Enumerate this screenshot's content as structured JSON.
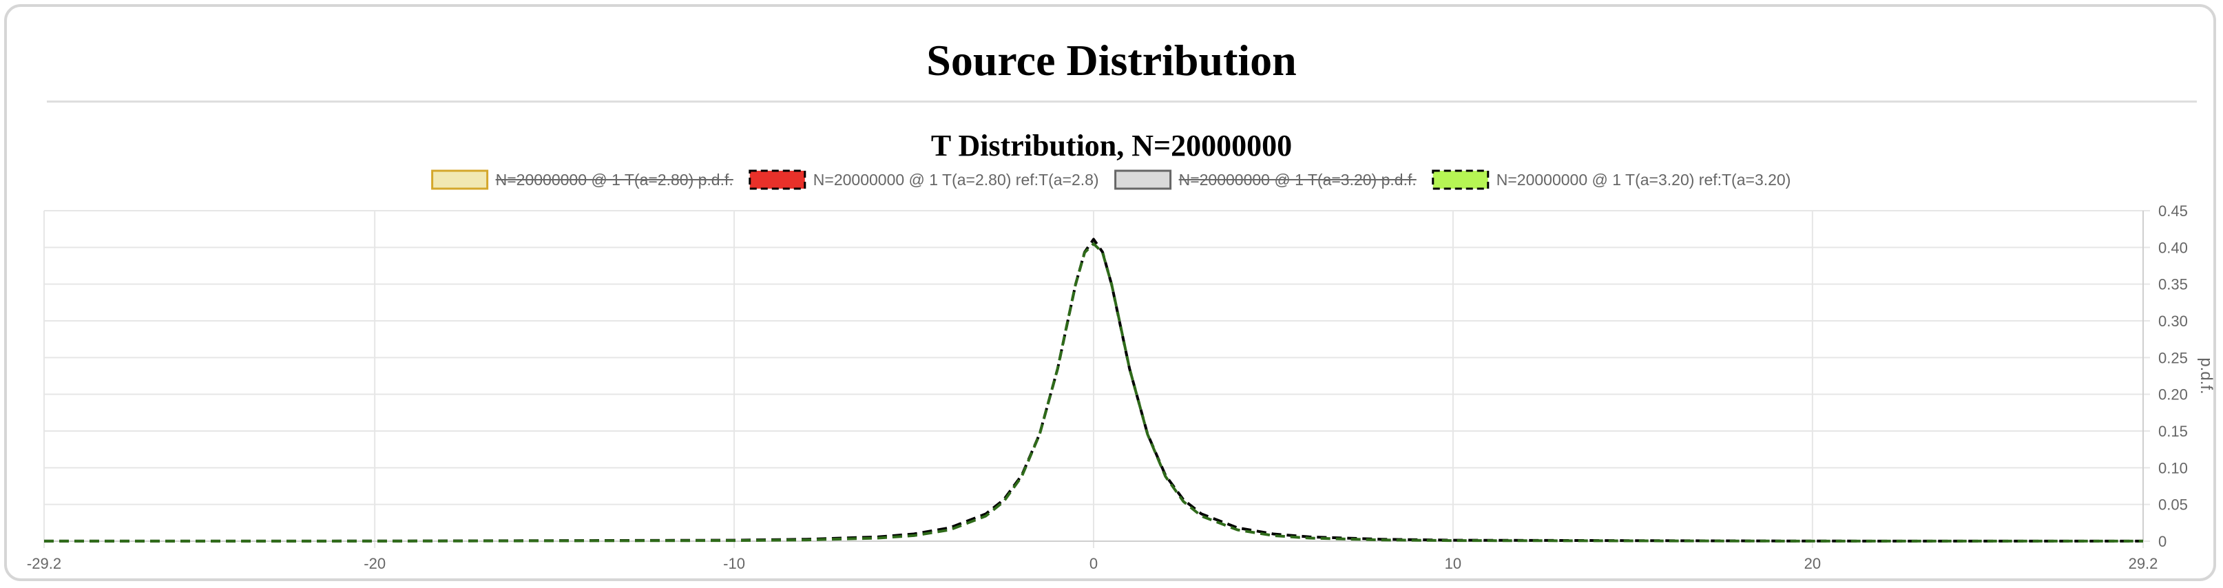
{
  "page": {
    "title": "Source Distribution"
  },
  "chart_data": {
    "type": "line",
    "title": "T Distribution, N=20000000",
    "xlabel": "",
    "ylabel": "p.d.f.",
    "xlim": [
      -29.2,
      29.2
    ],
    "ylim": [
      0,
      0.45
    ],
    "x_ticks": [
      "-29.2",
      "-20",
      "-10",
      "0",
      "10",
      "20",
      "29.2"
    ],
    "y_ticks": [
      "0",
      "0.05",
      "0.10",
      "0.15",
      "0.20",
      "0.25",
      "0.30",
      "0.35",
      "0.40",
      "0.45"
    ],
    "grid": true,
    "legend_position": "top",
    "y_axis_side": "right",
    "series": [
      {
        "name": "N=20000000 @ 1 T(a=2.80) p.d.f.",
        "hidden": true,
        "dashed": false,
        "color": "#d4a72c",
        "fill": "#f1e8b3",
        "x": [],
        "y": []
      },
      {
        "name": "N=20000000 @ 1 T(a=2.80) ref:T(a=2.8)",
        "hidden": false,
        "dashed": true,
        "color": "#000000",
        "fill": "#e8312a",
        "x": [
          -29.2,
          -20,
          -10,
          -8,
          -6,
          -5,
          -4,
          -3,
          -2.5,
          -2,
          -1.5,
          -1,
          -0.75,
          -0.5,
          -0.25,
          0,
          0.25,
          0.5,
          0.75,
          1,
          1.5,
          2,
          2.5,
          3,
          4,
          5,
          6,
          8,
          10,
          20,
          29.2
        ],
        "y": [
          0.0001,
          0.0002,
          0.0013,
          0.0026,
          0.0058,
          0.0098,
          0.0183,
          0.0371,
          0.0564,
          0.0896,
          0.1461,
          0.2348,
          0.2926,
          0.3498,
          0.3937,
          0.4111,
          0.3937,
          0.3498,
          0.2926,
          0.2348,
          0.1461,
          0.0896,
          0.0564,
          0.0371,
          0.0183,
          0.0098,
          0.0058,
          0.0026,
          0.0013,
          0.0002,
          0.0001
        ]
      },
      {
        "name": "N=20000000 @ 1 T(a=3.20) p.d.f.",
        "hidden": true,
        "dashed": false,
        "color": "#666666",
        "fill": "#dadada",
        "x": [],
        "y": []
      },
      {
        "name": "N=20000000 @ 1 T(a=3.20) ref:T(a=3.20)",
        "hidden": false,
        "dashed": true,
        "color": "#2f6b1a",
        "fill": "#b6f554",
        "x": [
          -29.2,
          -20,
          -10,
          -8,
          -6,
          -5,
          -4,
          -3,
          -2.5,
          -2,
          -1.5,
          -1,
          -0.75,
          -0.5,
          -0.25,
          0,
          0.25,
          0.5,
          0.75,
          1,
          1.5,
          2,
          2.5,
          3,
          4,
          5,
          6,
          8,
          10,
          20,
          29.2
        ],
        "y": [
          0.0001,
          0.0001,
          0.0008,
          0.0017,
          0.0042,
          0.0076,
          0.0155,
          0.0342,
          0.054,
          0.088,
          0.1457,
          0.235,
          0.2932,
          0.35,
          0.393,
          0.405,
          0.393,
          0.35,
          0.2932,
          0.235,
          0.1457,
          0.088,
          0.054,
          0.0342,
          0.0155,
          0.0076,
          0.0042,
          0.0017,
          0.0008,
          0.0001,
          0.0001
        ]
      }
    ]
  }
}
